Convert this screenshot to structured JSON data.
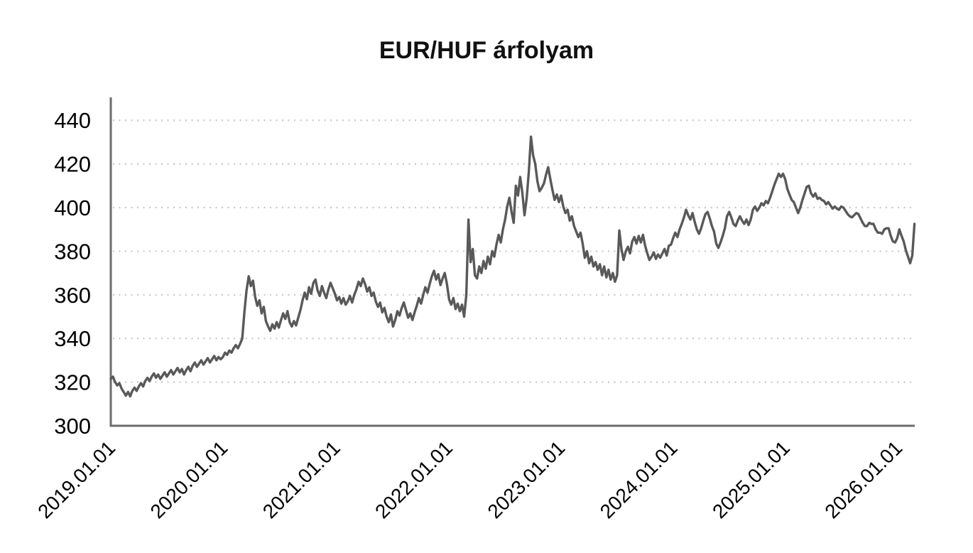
{
  "chart": {
    "colors": {
      "line": "#595959",
      "grid_dots": "#c8c8c8",
      "axis": "#6b6b6b",
      "text": "#000000",
      "background": "#ffffff"
    }
  },
  "chart_data": {
    "type": "line",
    "title": "EUR/HUF árfolyam",
    "xlabel": "",
    "ylabel": "",
    "legend": "none",
    "grid": "dotted-horizontal",
    "x_tick_labels": [
      "2019.01.01",
      "2020.01.01",
      "2021.01.01",
      "2022.01.01",
      "2023.01.01",
      "2024.01.01",
      "2025.01.01",
      "2026.01.01"
    ],
    "y_ticks": [
      300,
      320,
      340,
      360,
      380,
      400,
      420,
      440
    ],
    "ylim": [
      300,
      450.5
    ],
    "x_span_years": 7.15,
    "sampling": "weekly",
    "series": [
      {
        "name": "EUR/HUF",
        "values": [
          321.5,
          322.5,
          320,
          318.5,
          319.5,
          317,
          315.5,
          313.8,
          315.5,
          313.5,
          316,
          317.5,
          316,
          318,
          319.5,
          318,
          320.5,
          322,
          320.5,
          322.5,
          324,
          322,
          323.5,
          321.5,
          323,
          324.5,
          322.5,
          324,
          325.5,
          323.5,
          325,
          326.5,
          324.5,
          326,
          323.5,
          325.5,
          327,
          325,
          327.5,
          329,
          327,
          328.5,
          330,
          328,
          329.5,
          331,
          329,
          330.5,
          332,
          330,
          331.5,
          330.5,
          331.5,
          333.5,
          332.5,
          334.5,
          333.5,
          335.5,
          337,
          335.5,
          337.5,
          340,
          352,
          362,
          368.5,
          364,
          366.5,
          359,
          355,
          357.5,
          351.5,
          354.5,
          348,
          345.5,
          343.5,
          346.5,
          344.5,
          347.5,
          345,
          348.5,
          351.5,
          349,
          352.5,
          347.5,
          345.5,
          348,
          346,
          349.5,
          353,
          357.5,
          361,
          358,
          363.5,
          360.5,
          365.5,
          367,
          362,
          359.5,
          364,
          361,
          358.5,
          362.5,
          365.5,
          363,
          360.5,
          357.5,
          359,
          356,
          358.5,
          355.5,
          357,
          359.5,
          356.5,
          360,
          362.5,
          366,
          364,
          367.5,
          365,
          361.5,
          363.5,
          359.5,
          361,
          357,
          354.5,
          356.5,
          352,
          354,
          350,
          347.5,
          351,
          345.5,
          348.5,
          352.5,
          350.5,
          354,
          356.5,
          353,
          349.5,
          351.5,
          348.5,
          352,
          355,
          358.5,
          356,
          360,
          363.5,
          361,
          365,
          368.5,
          371,
          367,
          369.5,
          364.5,
          367.5,
          370,
          365,
          358,
          355.5,
          358.5,
          353.5,
          356,
          352.5,
          355.5,
          350,
          360,
          394.5,
          375,
          381,
          369,
          367.5,
          373,
          370,
          375.5,
          372,
          377.5,
          374,
          380,
          377.5,
          383,
          387.5,
          384,
          390,
          394.5,
          400.5,
          404.5,
          398,
          393,
          410,
          405.5,
          414,
          407,
          396.5,
          404,
          416,
          432.5,
          424,
          420,
          412,
          407.5,
          409,
          411,
          415,
          418.5,
          413,
          408,
          403.5,
          406,
          402.5,
          405.5,
          400.5,
          397.5,
          399,
          394,
          396,
          391.5,
          389,
          386.5,
          388.5,
          383.5,
          377,
          380,
          374.5,
          377.5,
          373,
          375,
          371.5,
          374,
          369,
          373,
          368,
          371.5,
          367,
          370,
          366,
          369,
          389.5,
          381,
          376,
          380,
          382,
          379,
          384.5,
          386.5,
          383.5,
          387,
          384,
          387.5,
          382.5,
          379,
          376,
          377.5,
          379.5,
          376.5,
          378.5,
          377,
          379,
          381,
          378,
          382.5,
          383,
          386,
          388.5,
          386.5,
          390,
          392.5,
          395.5,
          399,
          396.5,
          394.5,
          397.5,
          393.5,
          390,
          388,
          390.5,
          394,
          397,
          398,
          395,
          391.5,
          389,
          383.5,
          381.5,
          384,
          387,
          390.5,
          396,
          398,
          395.5,
          392.5,
          391.5,
          394,
          396,
          394,
          392.5,
          394.5,
          392,
          394.5,
          399,
          400.5,
          398.5,
          400,
          402,
          401,
          403,
          402,
          404.5,
          407.5,
          410.5,
          413,
          415.5,
          414,
          415.5,
          413,
          408.5,
          406,
          403.5,
          402.5,
          400,
          397.5,
          400,
          403.5,
          406.5,
          409.5,
          410,
          406.5,
          405,
          406.5,
          404,
          404.5,
          403.5,
          403,
          401.5,
          402.5,
          401,
          399.5,
          400.5,
          399.5,
          399,
          400.5,
          400,
          398.5,
          397,
          396,
          395.5,
          396.5,
          397.5,
          397,
          395,
          393,
          391.5,
          391.5,
          393,
          392.5,
          392.5,
          390,
          388.5,
          388.5,
          388,
          390,
          390.5,
          390.5,
          387,
          384.5,
          384,
          386,
          390,
          387,
          384.5,
          380.5,
          377.5,
          374.5,
          378,
          392.5
        ]
      }
    ]
  }
}
